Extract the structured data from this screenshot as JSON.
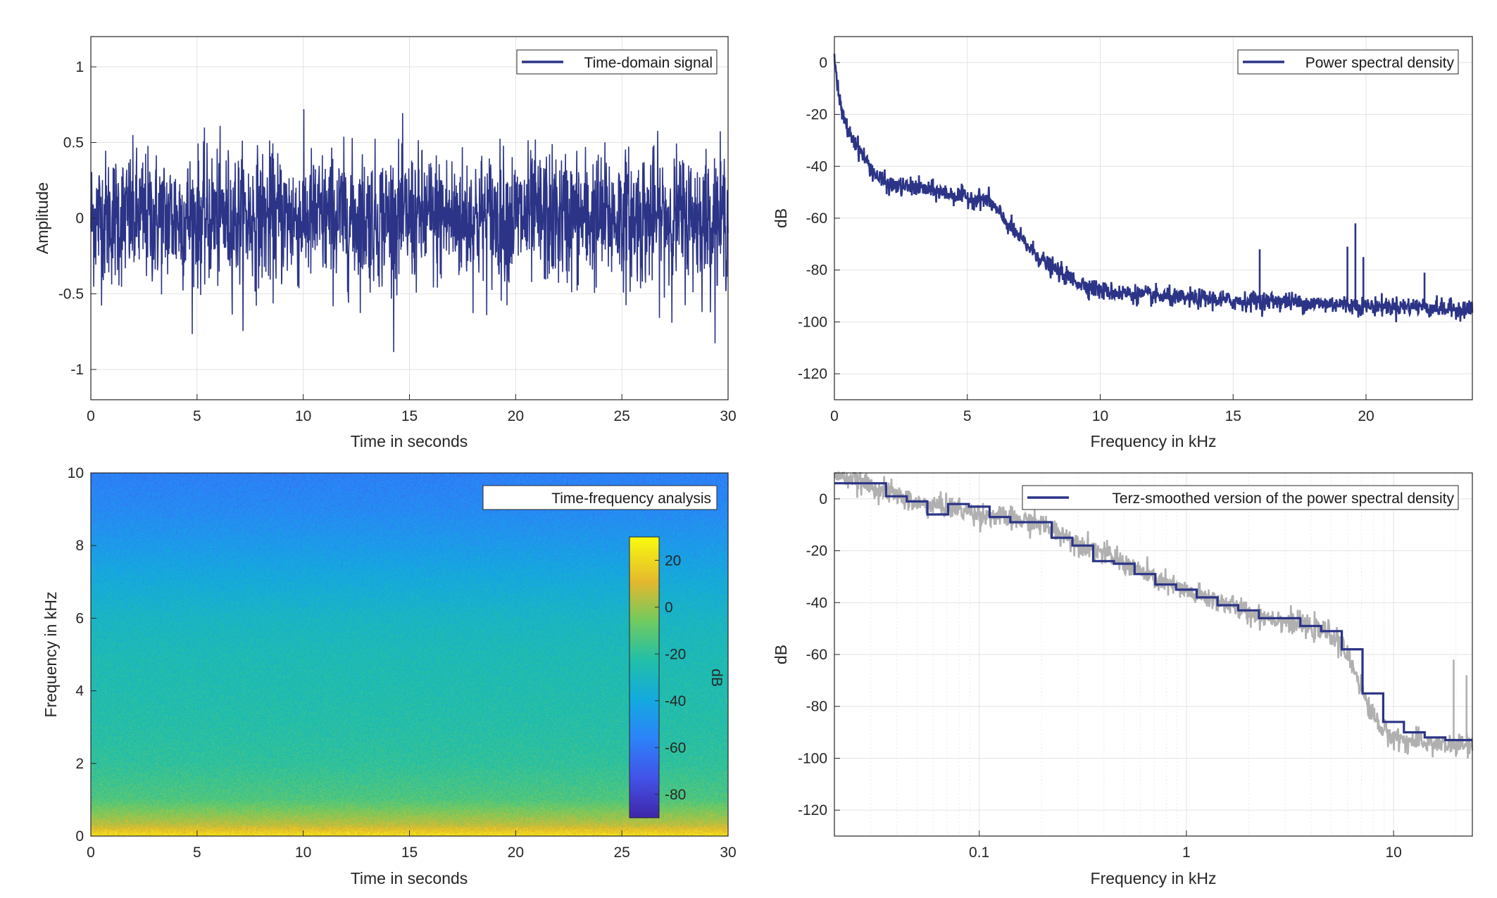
{
  "figure": {
    "background": "#ffffff"
  },
  "colors": {
    "line": "#2b3486",
    "gray": "#b0b0b0",
    "grid": "#e3e3e3",
    "axis": "#262626"
  },
  "chart_data": [
    {
      "id": "time_domain",
      "type": "line",
      "xlabel": "Time in seconds",
      "ylabel": "Amplitude",
      "xlim": [
        0,
        30
      ],
      "ylim": [
        -1.2,
        1.2
      ],
      "xticks": [
        0,
        5,
        10,
        15,
        20,
        25,
        30
      ],
      "yticks": [
        -1,
        -0.5,
        0,
        0.5,
        1
      ],
      "grid": true,
      "legend": {
        "position": "top-right",
        "entries": [
          "Time-domain signal"
        ]
      },
      "series": [
        {
          "name": "Time-domain signal",
          "color": "#2b3486",
          "envelope": {
            "rms": 0.22,
            "peak_max": 0.85,
            "peak_min": -0.98
          }
        }
      ]
    },
    {
      "id": "psd",
      "type": "line",
      "xlabel": "Frequency in kHz",
      "ylabel": "dB",
      "xlim": [
        0,
        24
      ],
      "ylim": [
        -130,
        10
      ],
      "xticks": [
        0,
        5,
        10,
        15,
        20
      ],
      "yticks": [
        -120,
        -100,
        -80,
        -60,
        -40,
        -20,
        0
      ],
      "grid": true,
      "legend": {
        "position": "top-right",
        "entries": [
          "Power spectral density"
        ]
      },
      "series": [
        {
          "name": "Power spectral density",
          "color": "#2b3486",
          "x": [
            0,
            0.05,
            0.15,
            0.3,
            0.5,
            0.8,
            1.2,
            1.6,
            2,
            2.5,
            3,
            4,
            5,
            5.8,
            6.5,
            7,
            7.5,
            8,
            9,
            10,
            11,
            12,
            13,
            14,
            15,
            16,
            17,
            18,
            19,
            20,
            21,
            22,
            23,
            24
          ],
          "y": [
            5,
            -3,
            -12,
            -20,
            -26,
            -31,
            -38,
            -44,
            -47,
            -48,
            -48,
            -50,
            -52,
            -53,
            -62,
            -68,
            -73,
            -78,
            -84,
            -88,
            -89,
            -90,
            -91,
            -91,
            -92,
            -92,
            -92,
            -93,
            -93,
            -94,
            -94,
            -94,
            -95,
            -95
          ],
          "peaks": [
            {
              "x": 16,
              "y": -72
            },
            {
              "x": 19.3,
              "y": -71
            },
            {
              "x": 19.6,
              "y": -62
            },
            {
              "x": 19.9,
              "y": -75
            },
            {
              "x": 22.2,
              "y": -81
            }
          ]
        }
      ]
    },
    {
      "id": "spectrogram",
      "type": "heatmap",
      "xlabel": "Time in seconds",
      "ylabel": "Frequency in kHz",
      "xlim": [
        0,
        30
      ],
      "ylim": [
        0,
        10
      ],
      "xticks": [
        0,
        5,
        10,
        15,
        20,
        25,
        30
      ],
      "yticks": [
        0,
        2,
        4,
        6,
        8,
        10
      ],
      "legend": {
        "position": "top-right",
        "entries": [
          "Time-frequency analysis"
        ]
      },
      "colorbar": {
        "label": "dB",
        "range": [
          -90,
          30
        ],
        "ticks": [
          20,
          0,
          -20,
          -40,
          -60,
          -80
        ],
        "colormap": "parula"
      },
      "frequency_profile": {
        "freq_khz": [
          0,
          0.3,
          1,
          2,
          3,
          4,
          5,
          6,
          7,
          8,
          9,
          10
        ],
        "level_db": [
          22,
          5,
          -13,
          -20,
          -23,
          -25,
          -27,
          -31,
          -38,
          -46,
          -53,
          -57
        ]
      }
    },
    {
      "id": "terz",
      "type": "line",
      "xlabel": "Frequency in kHz",
      "ylabel": "dB",
      "xscale": "log",
      "xlim": [
        0.02,
        24
      ],
      "ylim": [
        -130,
        10
      ],
      "xticks": [
        0.1,
        1,
        10
      ],
      "xticklabels": [
        "0.1",
        "1",
        "10"
      ],
      "yticks": [
        -120,
        -100,
        -80,
        -60,
        -40,
        -20,
        0
      ],
      "grid": true,
      "legend": {
        "position": "top-right",
        "entries": [
          "Terz-smoothed version of the power spectral density"
        ]
      },
      "series": [
        {
          "name": "Terz-smoothed version of the power spectral density",
          "color": "#2b3486",
          "band_edges": [
            0.02,
            0.0355,
            0.0447,
            0.0562,
            0.0708,
            0.0891,
            0.1122,
            0.1413,
            0.1778,
            0.2239,
            0.2818,
            0.3548,
            0.4467,
            0.5623,
            0.7079,
            0.8913,
            1.122,
            1.413,
            1.778,
            2.239,
            2.818,
            3.548,
            4.467,
            5.623,
            7.079,
            8.913,
            11.22,
            14.13,
            17.78,
            24
          ],
          "levels": [
            6,
            1,
            -1,
            -6,
            -2,
            -3,
            -7,
            -9,
            -9,
            -15,
            -18,
            -24,
            -25,
            -29,
            -33,
            -35,
            -38,
            -41,
            -43,
            -46,
            -46,
            -49,
            -51,
            -58,
            -75,
            -86,
            -90,
            -92,
            -93
          ]
        },
        {
          "name": "",
          "color": "#b0b0b0",
          "x": [
            0.02,
            0.03,
            0.05,
            0.07,
            0.1,
            0.15,
            0.2,
            0.3,
            0.5,
            0.7,
            1,
            1.5,
            2,
            3,
            4,
            5,
            5.5,
            6.5,
            7.5,
            9,
            11,
            14,
            18,
            24
          ],
          "y": [
            10,
            5,
            -2,
            -3,
            -6,
            -8,
            -10,
            -17,
            -25,
            -31,
            -36,
            -40,
            -44,
            -47,
            -50,
            -52,
            -56,
            -66,
            -80,
            -90,
            -93,
            -94,
            -95,
            -95
          ],
          "peaks": [
            {
              "x": 19.5,
              "y": -62
            },
            {
              "x": 22.5,
              "y": -68
            }
          ]
        }
      ]
    }
  ]
}
